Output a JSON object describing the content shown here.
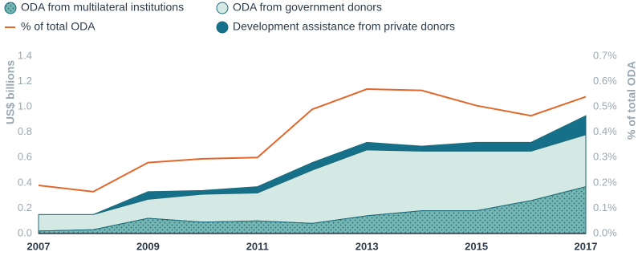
{
  "chart_data": {
    "type": "stacked_area_line",
    "x": [
      2007,
      2008,
      2009,
      2010,
      2011,
      2012,
      2013,
      2014,
      2015,
      2016,
      2017
    ],
    "xlim": [
      2007,
      2017
    ],
    "xticks": [
      2007,
      2009,
      2011,
      2013,
      2015,
      2017
    ],
    "ylabel": "US$ billions",
    "ylim": [
      0,
      1.4
    ],
    "yticks": [
      {
        "value": 0,
        "label": "0.0"
      },
      0.2,
      0.4,
      0.6,
      0.8,
      {
        "value": 1,
        "label": "1.0"
      },
      1.2,
      1.4
    ],
    "y2label": "% of total ODA",
    "y2lim": [
      0,
      0.7
    ],
    "y2ticks": [
      {
        "value": 0,
        "label": "0.0%"
      },
      {
        "value": 0.1,
        "label": "0.1%"
      },
      {
        "value": 0.2,
        "label": "0.2%"
      },
      {
        "value": 0.3,
        "label": "0.3%"
      },
      {
        "value": 0.4,
        "label": "0.4%"
      },
      {
        "value": 0.5,
        "label": "0.5%"
      },
      {
        "value": 0.6,
        "label": "0.6%"
      },
      {
        "value": 0.7,
        "label": "0.7%"
      }
    ],
    "series": [
      {
        "name": "ODA from multilateral institutions",
        "color": "#74b6b3",
        "pattern": "dots",
        "values": [
          0.02,
          0.03,
          0.12,
          0.09,
          0.1,
          0.08,
          0.14,
          0.18,
          0.18,
          0.26,
          0.37
        ]
      },
      {
        "name": "ODA from government donors",
        "color": "#d4e9e4",
        "values": [
          0.13,
          0.12,
          0.15,
          0.22,
          0.22,
          0.42,
          0.52,
          0.47,
          0.47,
          0.39,
          0.41
        ]
      },
      {
        "name": "Development assistance from private donors",
        "color": "#17708a",
        "values": [
          0,
          0,
          0.06,
          0.03,
          0.05,
          0.06,
          0.06,
          0.04,
          0.07,
          0.07,
          0.15
        ]
      },
      {
        "name": "% of total ODA",
        "color": "#e2672b",
        "axis": "y2",
        "line": true,
        "values": [
          0.19,
          0.165,
          0.28,
          0.295,
          0.3,
          0.49,
          0.57,
          0.565,
          0.505,
          0.465,
          0.54
        ]
      }
    ]
  }
}
